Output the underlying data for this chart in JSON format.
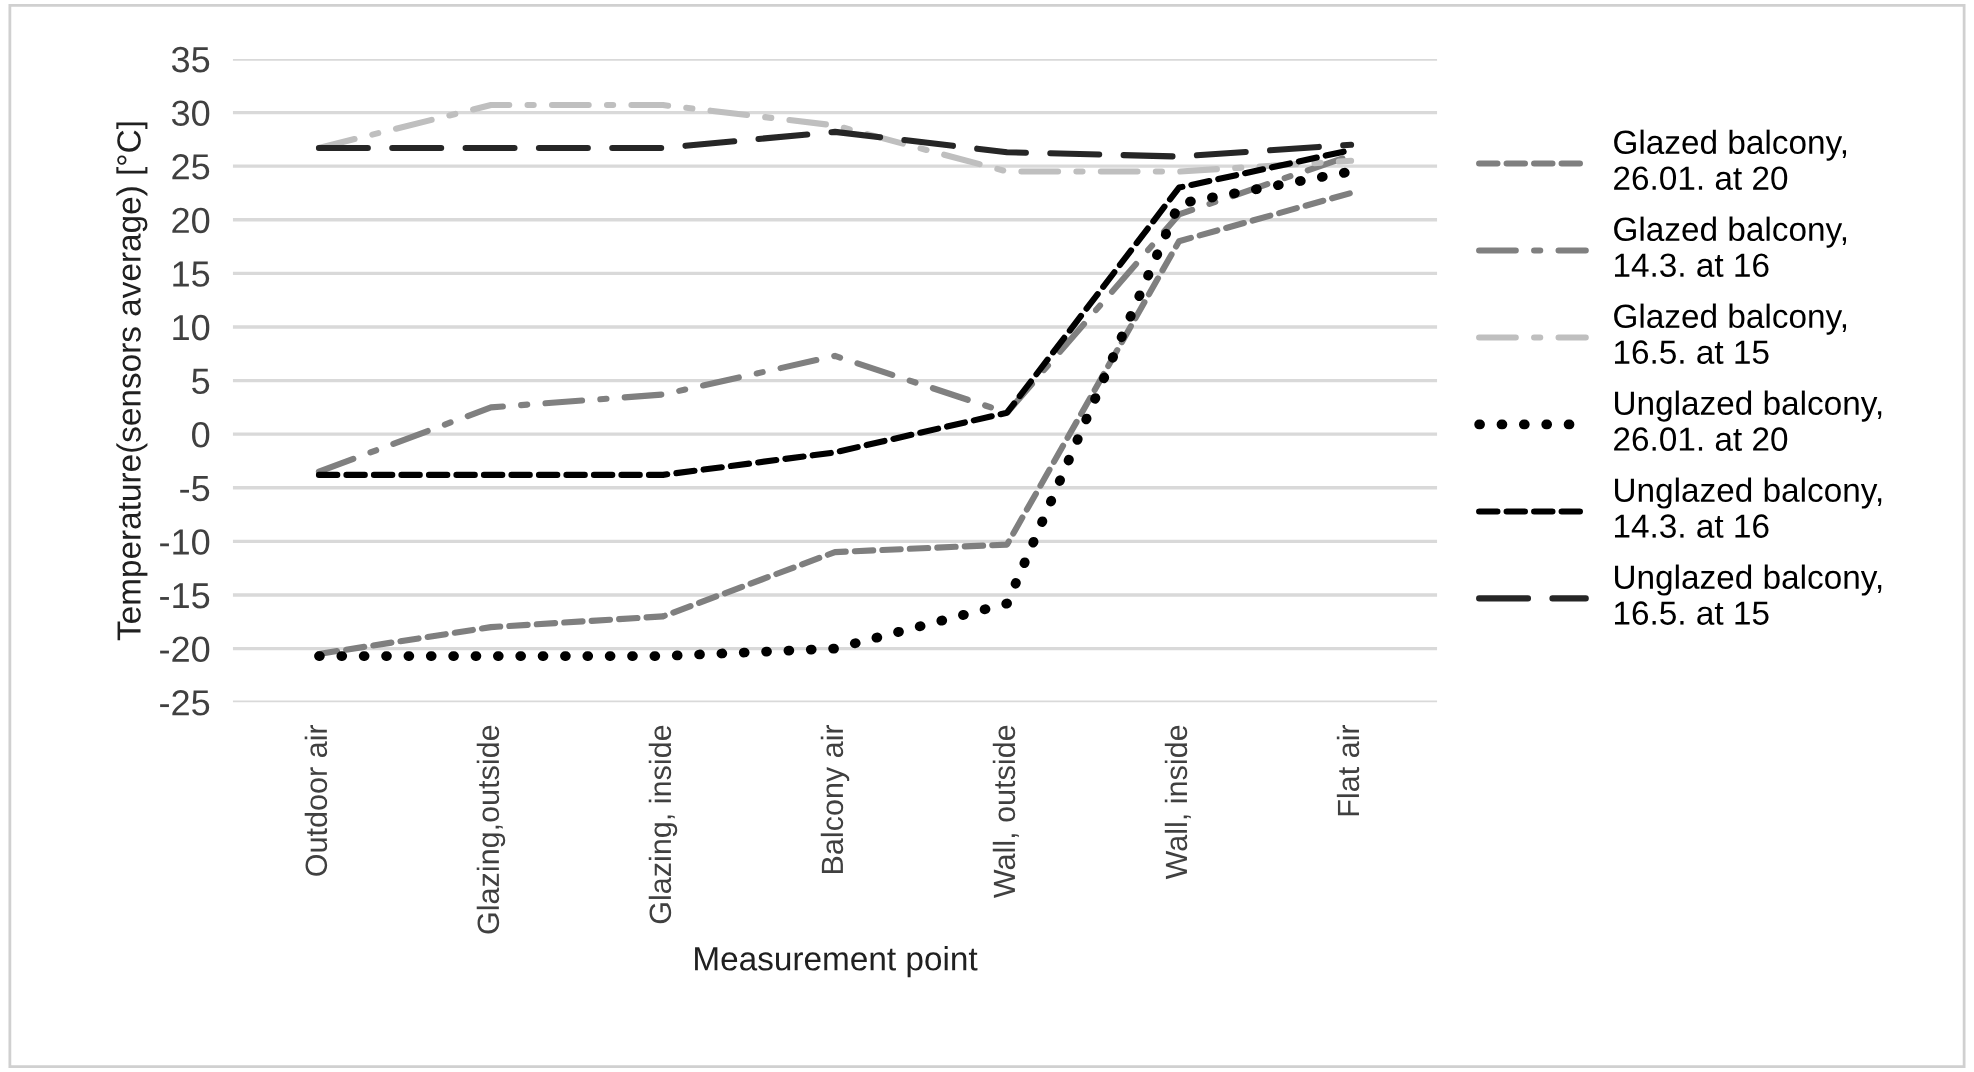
{
  "chart_data": {
    "type": "line",
    "xlabel": "Measurement point",
    "ylabel": "Temperature(sensors average) [°C]",
    "categories": [
      "Outdoor air",
      "Glazing,outside",
      "Glazing, inside",
      "Balcony air",
      "Wall, outside",
      "Wall, inside",
      "Flat air"
    ],
    "ylim": [
      -25,
      35
    ],
    "yticks": [
      -25,
      -20,
      -15,
      -10,
      -5,
      0,
      5,
      10,
      15,
      20,
      25,
      30,
      35
    ],
    "grid": "y",
    "legend": "right",
    "marker": "none",
    "series": [
      {
        "name": "Glazed balcony, 26.01. at 20",
        "color": "#7f7f7f",
        "line_style": "dashed",
        "values": [
          -20.5,
          -18,
          -17,
          -11,
          -10.3,
          18,
          22.5
        ]
      },
      {
        "name": "Glazed balcony, 14.3. at 16",
        "color": "#808080",
        "line_style": "dashdot",
        "values": [
          -3.5,
          2.5,
          3.7,
          7.3,
          2,
          20.5,
          26
        ]
      },
      {
        "name": "Glazed balcony, 16.5. at 15",
        "color": "#bfbfbf",
        "line_style": "dashdot",
        "values": [
          26.7,
          30.7,
          30.7,
          28.8,
          24.5,
          24.5,
          25.5
        ]
      },
      {
        "name": "Unglazed balcony, 26.01. at 20",
        "color": "#000000",
        "line_style": "dotted",
        "values": [
          -20.7,
          -20.7,
          -20.7,
          -20,
          -15.8,
          21.5,
          24.5
        ]
      },
      {
        "name": "Unglazed balcony, 14.3. at 16",
        "color": "#000000",
        "line_style": "dashed",
        "values": [
          -3.8,
          -3.8,
          -3.8,
          -1.7,
          2,
          23,
          26.5
        ]
      },
      {
        "name": "Unglazed balcony, 16.5. at 15",
        "color": "#262626",
        "line_style": "longdash",
        "values": [
          26.7,
          26.7,
          26.7,
          28.2,
          26.3,
          25.9,
          27
        ]
      }
    ]
  }
}
